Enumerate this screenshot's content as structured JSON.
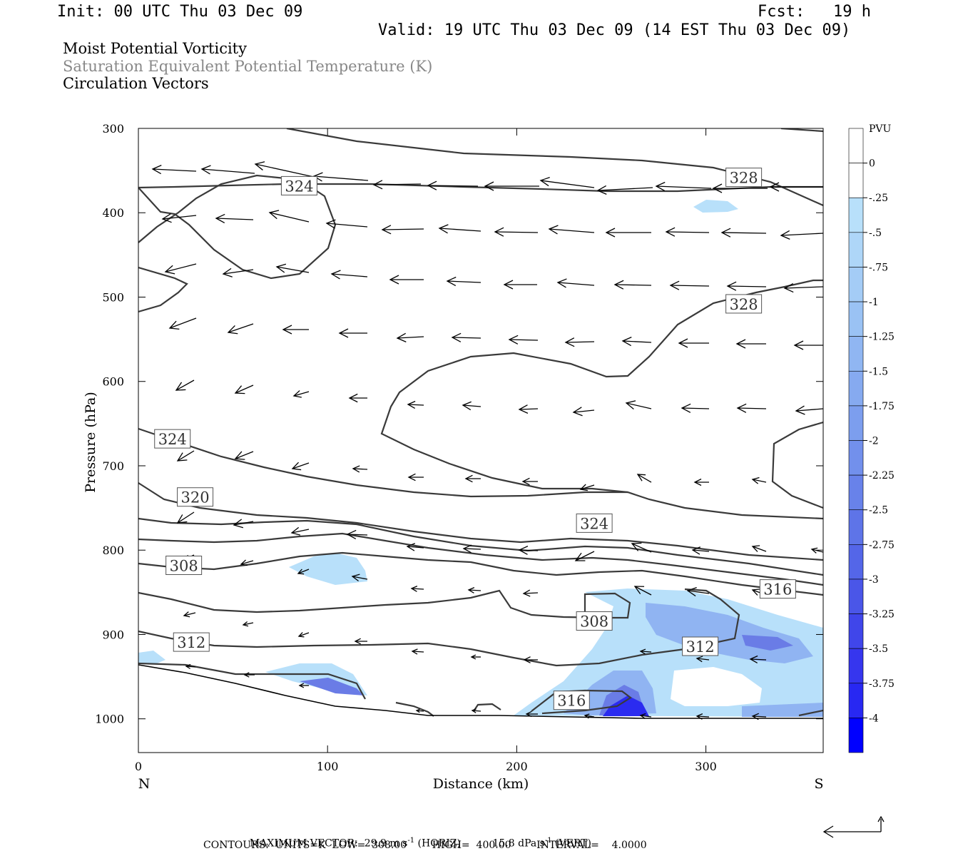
{
  "header": {
    "init": "Init: 00 UTC Thu 03 Dec 09",
    "fcst": "Fcst:   19 h",
    "valid": "Valid: 19 UTC Thu 03 Dec 09 (14 EST Thu 03 Dec 09)"
  },
  "titles": {
    "line1": "Moist Potential Vorticity",
    "line2": "Saturation Equivalent Potential Temperature (K)",
    "line3": "Circulation Vectors"
  },
  "footer": {
    "max_vector_label": "MAXIMUM VECTOR:",
    "horiz_value": "29.9",
    "horiz_units": "m s",
    "horiz_exp": "-1",
    "horiz_tag": "(HORIZ)",
    "vert_value": "15.8",
    "vert_units": "dPa s",
    "vert_exp": "-1",
    "vert_tag": "(VERT)",
    "contours": "CONTOURS:  UNITS=K  LOW=  308.00        HIGH=  400.00        INTERVAL=    4.0000"
  },
  "colors": {
    "frame": "#000000",
    "contour": "#3a3a3a",
    "fill_light": "#b8e0fa",
    "fill_dark": "#0000ff"
  },
  "chart_data": {
    "type": "cross-section",
    "xlabel": "Distance (km)",
    "ylabel": "Pressure (hPa)",
    "xlim": [
      0,
      362
    ],
    "ylim": [
      1040,
      300
    ],
    "x_ticks": [
      0,
      100,
      200,
      300
    ],
    "y_ticks": [
      300,
      400,
      500,
      600,
      700,
      800,
      900,
      1000
    ],
    "x_endpoint_left": "N",
    "x_endpoint_right": "S",
    "colorbar": {
      "units": "PVU",
      "labels": [
        "0",
        "-.25",
        "-.5",
        "-.75",
        "-1",
        "-1.25",
        "-1.5",
        "-1.75",
        "-2",
        "-2.25",
        "-2.5",
        "-2.75",
        "-3",
        "-3.25",
        "-3.5",
        "-3.75",
        "-4"
      ],
      "colors": [
        "#ffffff",
        "#ffffff",
        "#b8e0fa",
        "#aed6f8",
        "#a4ccf6",
        "#9ac2f4",
        "#90b6f2",
        "#86aaf0",
        "#7c9eee",
        "#7290ec",
        "#6882ea",
        "#5e74e8",
        "#5466e8",
        "#4a56e8",
        "#4046ea",
        "#3636ee",
        "#2828f2",
        "#0000ff"
      ]
    },
    "contour_labels": [
      {
        "text": "324",
        "x": 85,
        "p": 368
      },
      {
        "text": "328",
        "x": 320,
        "p": 358
      },
      {
        "text": "328",
        "x": 320,
        "p": 508
      },
      {
        "text": "324",
        "x": 18,
        "p": 668
      },
      {
        "text": "320",
        "x": 30,
        "p": 737
      },
      {
        "text": "324",
        "x": 241,
        "p": 768
      },
      {
        "text": "308",
        "x": 24,
        "p": 818
      },
      {
        "text": "316",
        "x": 338,
        "p": 846
      },
      {
        "text": "308",
        "x": 241,
        "p": 884
      },
      {
        "text": "312",
        "x": 28,
        "p": 909
      },
      {
        "text": "312",
        "x": 297,
        "p": 914
      },
      {
        "text": "316",
        "x": 229,
        "p": 978
      }
    ],
    "contour_levels_K": [
      308,
      312,
      316,
      320,
      324,
      328
    ],
    "pv_minimum_PVU": -4,
    "max_vector_horiz_m_s": 29.9,
    "max_vector_vert_dPa_s": 15.8
  }
}
